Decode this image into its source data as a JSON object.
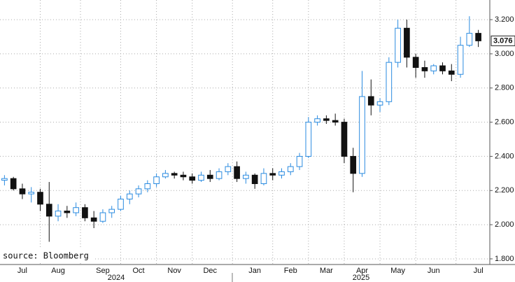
{
  "chart_data": {
    "type": "candlestick",
    "categories": [
      null,
      null,
      "Jul",
      null,
      null,
      null,
      "Aug",
      null,
      null,
      null,
      null,
      "Sep",
      null,
      null,
      null,
      "Oct",
      null,
      null,
      null,
      "Nov",
      null,
      null,
      null,
      "Dec",
      null,
      null,
      null,
      null,
      "Jan",
      null,
      null,
      null,
      "Feb",
      null,
      null,
      null,
      "Mar",
      null,
      null,
      null,
      "Apr",
      null,
      null,
      null,
      "May",
      null,
      null,
      null,
      "Jun",
      null,
      null,
      null,
      null,
      "Jul"
    ],
    "open": [
      2.26,
      2.27,
      2.21,
      2.18,
      2.19,
      2.12,
      2.05,
      2.08,
      2.07,
      2.1,
      2.04,
      2.02,
      2.07,
      2.09,
      2.15,
      2.18,
      2.21,
      2.24,
      2.28,
      2.3,
      2.29,
      2.28,
      2.26,
      2.29,
      2.27,
      2.31,
      2.34,
      2.27,
      2.29,
      2.24,
      2.3,
      2.29,
      2.31,
      2.34,
      2.4,
      2.6,
      2.62,
      2.61,
      2.6,
      2.4,
      2.3,
      2.75,
      2.7,
      2.72,
      2.95,
      3.15,
      2.98,
      2.92,
      2.9,
      2.93,
      2.9,
      2.88,
      3.05,
      3.12
    ],
    "high": [
      2.29,
      2.28,
      2.24,
      2.22,
      2.21,
      2.25,
      2.12,
      2.11,
      2.13,
      2.12,
      2.08,
      2.09,
      2.11,
      2.17,
      2.2,
      2.23,
      2.26,
      2.3,
      2.32,
      2.31,
      2.31,
      2.3,
      2.31,
      2.32,
      2.33,
      2.36,
      2.37,
      2.31,
      2.3,
      2.33,
      2.33,
      2.33,
      2.36,
      2.42,
      2.63,
      2.64,
      2.64,
      2.65,
      2.62,
      2.45,
      2.9,
      2.85,
      2.74,
      2.98,
      3.2,
      3.2,
      3.0,
      2.96,
      2.94,
      2.95,
      2.94,
      3.1,
      3.22,
      3.14
    ],
    "low": [
      2.23,
      2.2,
      2.15,
      2.13,
      2.08,
      1.9,
      2.02,
      2.04,
      2.05,
      2.02,
      1.98,
      2.01,
      2.04,
      2.08,
      2.12,
      2.16,
      2.19,
      2.22,
      2.27,
      2.27,
      2.26,
      2.24,
      2.25,
      2.25,
      2.26,
      2.29,
      2.25,
      2.24,
      2.21,
      2.23,
      2.26,
      2.27,
      2.29,
      2.32,
      2.39,
      2.58,
      2.59,
      2.58,
      2.36,
      2.19,
      2.28,
      2.64,
      2.66,
      2.7,
      2.92,
      2.92,
      2.86,
      2.86,
      2.88,
      2.88,
      2.84,
      2.86,
      3.04,
      3.04
    ],
    "close": [
      2.27,
      2.21,
      2.18,
      2.19,
      2.12,
      2.05,
      2.08,
      2.07,
      2.1,
      2.04,
      2.02,
      2.07,
      2.09,
      2.15,
      2.18,
      2.21,
      2.24,
      2.28,
      2.3,
      2.29,
      2.28,
      2.26,
      2.29,
      2.27,
      2.31,
      2.34,
      2.27,
      2.29,
      2.24,
      2.3,
      2.29,
      2.31,
      2.34,
      2.4,
      2.6,
      2.62,
      2.61,
      2.6,
      2.4,
      2.3,
      2.75,
      2.7,
      2.72,
      2.95,
      3.15,
      2.98,
      2.92,
      2.9,
      2.93,
      2.9,
      2.88,
      3.05,
      3.12,
      3.076
    ],
    "up_color": "#2a8be0",
    "down_color": "#111111",
    "ylim": [
      1.767,
      3.315
    ],
    "yticks": [
      {
        "value": 1.8,
        "label": "1.800"
      },
      {
        "value": 2.0,
        "label": "2.000"
      },
      {
        "value": 2.2,
        "label": "2.200"
      },
      {
        "value": 2.4,
        "label": "2.400"
      },
      {
        "value": 2.6,
        "label": "2.600"
      },
      {
        "value": 2.8,
        "label": "2.800"
      },
      {
        "value": 3.0,
        "label": "3.000"
      },
      {
        "value": 3.2,
        "label": "3.200"
      }
    ],
    "grid": true,
    "years": [
      "2024",
      "2025"
    ],
    "annotation": "source: Bloomberg"
  }
}
